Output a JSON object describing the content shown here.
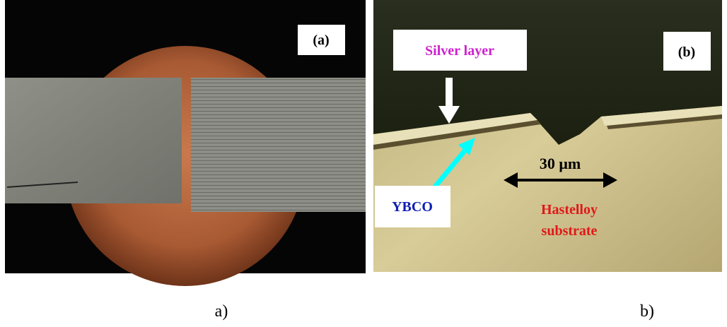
{
  "panels": [
    {
      "label": "(a)",
      "caption": "a)"
    },
    {
      "label": "(b)",
      "caption": "b)",
      "annotations": {
        "silver": "Silver layer",
        "ybco": "YBCO",
        "scale": "30 μm",
        "substrate": [
          "Hastelloy",
          "substrate"
        ]
      }
    }
  ]
}
